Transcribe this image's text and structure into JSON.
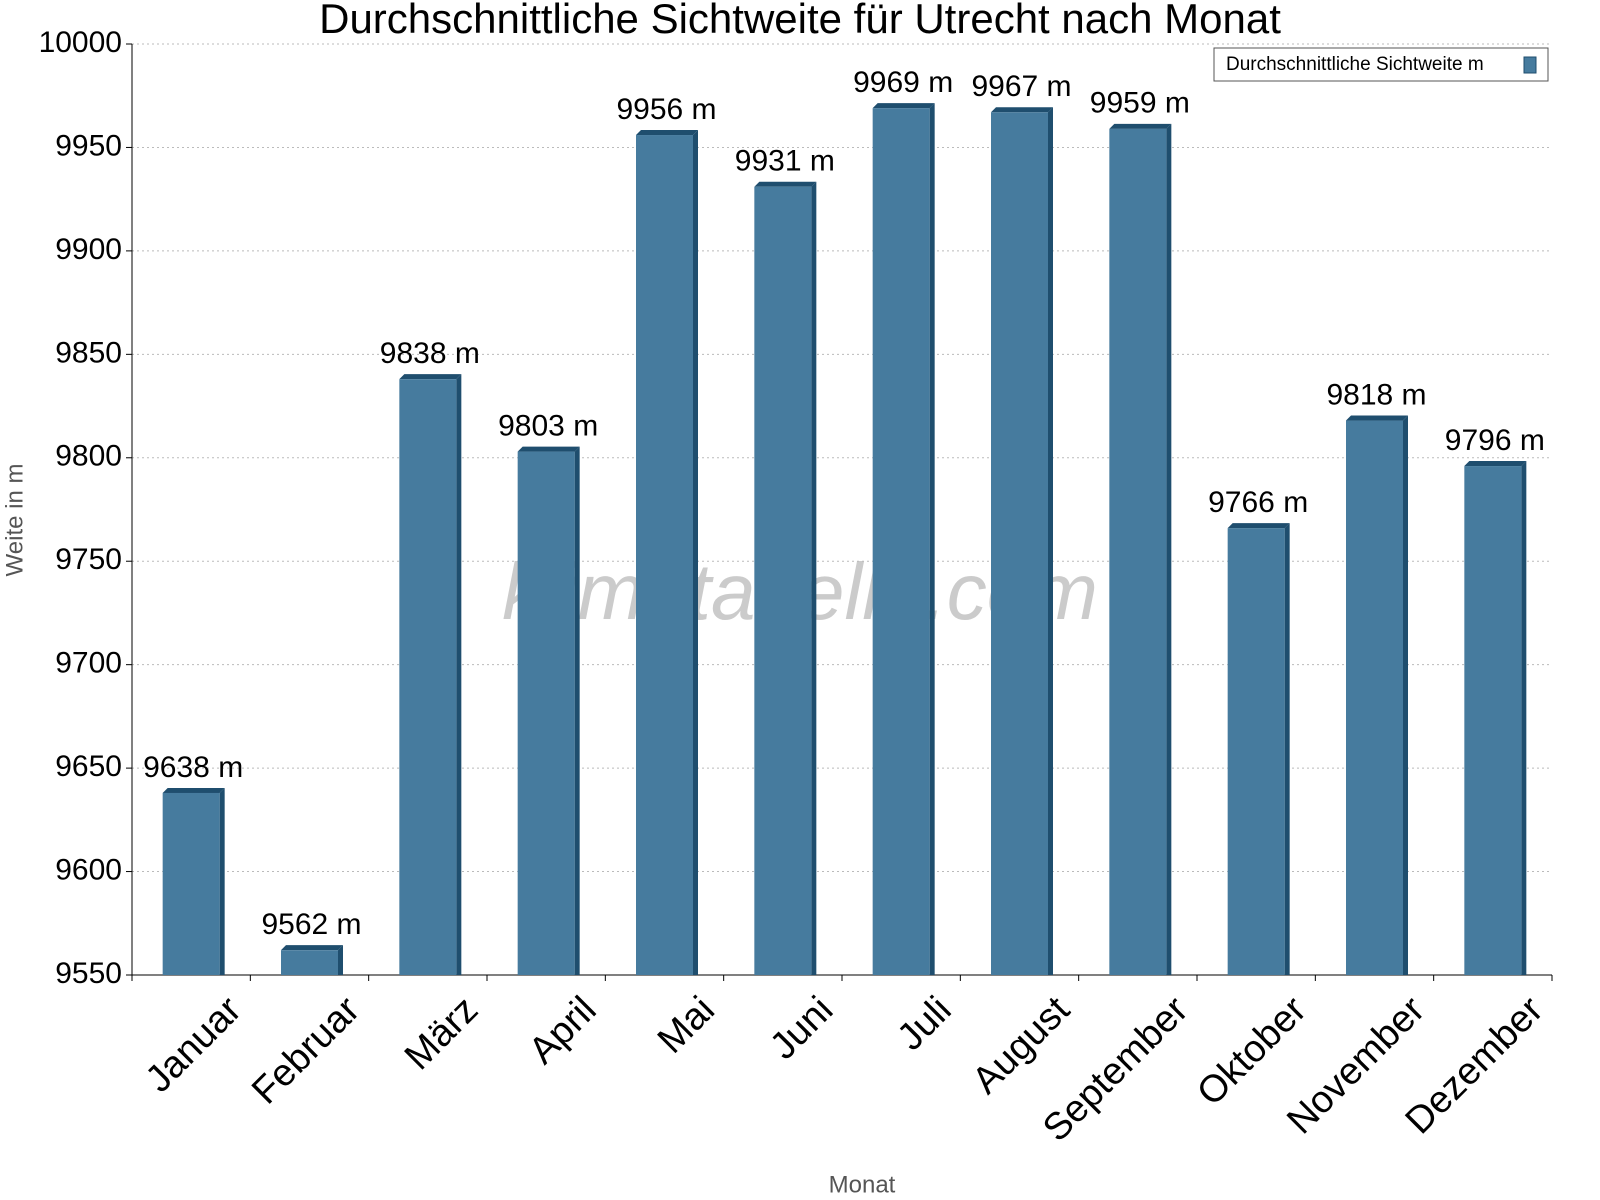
{
  "chart_data": {
    "type": "bar",
    "title": "Durchschnittliche Sichtweite für Utrecht nach Monat",
    "x_label": "Monat",
    "y_label": "Weite in m",
    "watermark": "klimatabelle.com",
    "categories": [
      "Januar",
      "Februar",
      "März",
      "April",
      "Mai",
      "Juni",
      "Juli",
      "August",
      "September",
      "Oktober",
      "November",
      "Dezember"
    ],
    "series": [
      {
        "name": "Durchschnittliche Sichtweite m",
        "color": "#467b9e",
        "values": [
          9638,
          9562,
          9838,
          9803,
          9956,
          9931,
          9969,
          9967,
          9959,
          9766,
          9818,
          9796
        ],
        "value_labels": [
          "9638 m",
          "9562 m",
          "9838 m",
          "9803 m",
          "9956 m",
          "9931 m",
          "9969 m",
          "9967 m",
          "9959 m",
          "9766 m",
          "9818 m",
          "9796 m"
        ]
      }
    ],
    "ylim": [
      9550,
      10000
    ],
    "yticks": [
      9550,
      9600,
      9650,
      9700,
      9750,
      9800,
      9850,
      9900,
      9950,
      10000
    ],
    "grid": true,
    "legend": "top-right"
  }
}
